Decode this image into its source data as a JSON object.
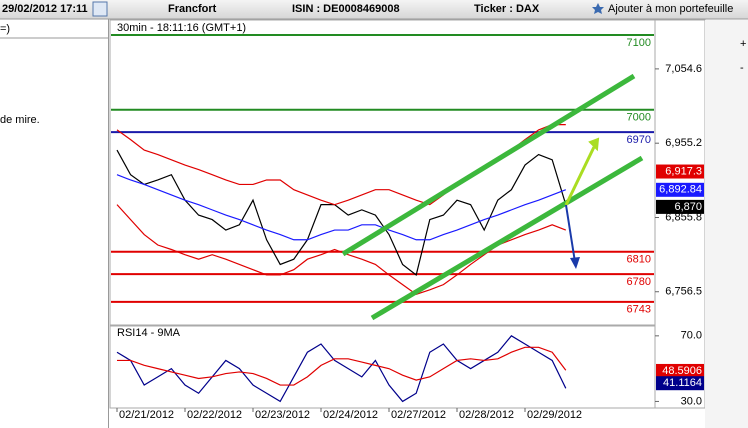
{
  "header": {
    "datetime": "29/02/2012 17:11",
    "exchange": "Francfort",
    "isin": "ISIN : DE0008469008",
    "ticker": "Ticker : DAX",
    "add_link": "Ajouter à mon portefeuille"
  },
  "left_panel": {
    "lines": [
      "=)",
      "de mire."
    ]
  },
  "chart_data": [
    {
      "type": "line",
      "title": "30min - 18:11:16 (GMT+1)",
      "ylim": [
        6712,
        7120
      ],
      "yticks": [
        {
          "value": 7054.6,
          "label": "7,054.6"
        },
        {
          "value": 6955.2,
          "label": "6,955.2"
        },
        {
          "value": 6855.8,
          "label": "6,855.8"
        },
        {
          "value": 6756.5,
          "label": "6,756.5"
        }
      ],
      "series": [
        {
          "color": "#000000",
          "values": [
            6946,
            6913,
            6900,
            6906,
            6913,
            6879,
            6859,
            6853,
            6839,
            6846,
            6879,
            6826,
            6793,
            6800,
            6826,
            6873,
            6873,
            6859,
            6866,
            6859,
            6833,
            6793,
            6779,
            6853,
            6859,
            6879,
            6873,
            6839,
            6879,
            6893,
            6926,
            6940,
            6933,
            6873,
            null
          ]
        },
        {
          "color": "#1a1aff",
          "values": [
            6913,
            6906,
            6900,
            6893,
            6886,
            6879,
            6873,
            6866,
            6859,
            6853,
            6846,
            6839,
            6833,
            6826,
            6826,
            6833,
            6839,
            6839,
            6846,
            6846,
            6839,
            6833,
            6826,
            6826,
            6833,
            6839,
            6846,
            6853,
            6859,
            6866,
            6873,
            6879,
            6886,
            6893,
            null
          ]
        },
        {
          "color": "#e00000",
          "values": [
            6973,
            6960,
            6946,
            6940,
            6933,
            6926,
            6920,
            6913,
            6906,
            6900,
            6900,
            6906,
            6906,
            6893,
            6886,
            6879,
            6873,
            6879,
            6886,
            6893,
            6893,
            6886,
            6879,
            6873,
            6886,
            6900,
            6913,
            6920,
            6933,
            6946,
            6960,
            6973,
            6980,
            6980,
            null
          ]
        },
        {
          "color": "#e00000",
          "values": [
            6873,
            6853,
            6833,
            6819,
            6813,
            6806,
            6800,
            6806,
            6800,
            6793,
            6786,
            6779,
            6779,
            6786,
            6800,
            6806,
            6813,
            6806,
            6800,
            6793,
            6779,
            6766,
            6753,
            6759,
            6766,
            6779,
            6793,
            6806,
            6819,
            6826,
            6833,
            6839,
            6846,
            6839,
            null
          ]
        }
      ],
      "levels": [
        {
          "value": 7100,
          "color": "#228b22"
        },
        {
          "value": 7000,
          "color": "#228b22"
        },
        {
          "value": 6970,
          "color": "#1a1aaa"
        },
        {
          "value": 6810,
          "color": "#e00000"
        },
        {
          "value": 6780,
          "color": "#e00000"
        },
        {
          "value": 6743,
          "color": "#e00000"
        }
      ],
      "price_tags": [
        {
          "value": 6917.3,
          "label": "6,917.3",
          "color": "#e00000"
        },
        {
          "value": 6892.84,
          "label": "6,892.84",
          "color": "#1a1aff"
        },
        {
          "value": 6870,
          "label": "6,870",
          "color": "#000000"
        }
      ]
    },
    {
      "type": "line",
      "title": "RSI14 - 9MA",
      "categories": [
        "02/21/2012",
        null,
        null,
        null,
        null,
        "02/22/2012",
        null,
        null,
        null,
        null,
        "02/23/2012",
        null,
        null,
        null,
        null,
        "02/24/2012",
        null,
        null,
        null,
        null,
        "02/27/2012",
        null,
        null,
        null,
        null,
        "02/28/2012",
        null,
        null,
        null,
        null,
        "02/29/2012",
        null,
        null,
        null,
        null
      ],
      "ylim": [
        26,
        76
      ],
      "yticks": [
        {
          "value": 70,
          "label": "70.0"
        },
        {
          "value": 30,
          "label": "30.0"
        }
      ],
      "series": [
        {
          "color": "#00008b",
          "values": [
            60,
            55,
            40,
            45,
            50,
            40,
            35,
            45,
            55,
            50,
            40,
            35,
            30,
            45,
            60,
            65,
            55,
            50,
            45,
            55,
            40,
            30,
            35,
            60,
            65,
            55,
            50,
            55,
            60,
            70,
            65,
            60,
            55,
            38,
            null
          ]
        },
        {
          "color": "#e00000",
          "values": [
            55,
            55,
            52,
            50,
            48,
            46,
            44,
            45,
            47,
            48,
            47,
            44,
            40,
            40,
            45,
            52,
            56,
            56,
            54,
            52,
            50,
            46,
            43,
            45,
            50,
            55,
            56,
            55,
            56,
            60,
            63,
            63,
            60,
            49,
            null
          ]
        }
      ],
      "price_tags": [
        {
          "value": 48.5906,
          "label": "48.5906",
          "color": "#e00000"
        },
        {
          "value": 41.1164,
          "label": "41.1164",
          "color": "#00008b"
        }
      ]
    }
  ]
}
